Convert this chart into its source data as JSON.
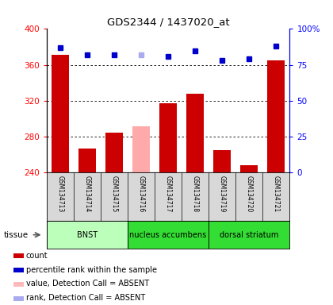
{
  "title": "GDS2344 / 1437020_at",
  "samples": [
    "GSM134713",
    "GSM134714",
    "GSM134715",
    "GSM134716",
    "GSM134717",
    "GSM134718",
    "GSM134719",
    "GSM134720",
    "GSM134721"
  ],
  "bar_values": [
    371,
    267,
    284,
    291,
    317,
    328,
    265,
    248,
    365
  ],
  "bar_colors": [
    "#cc0000",
    "#cc0000",
    "#cc0000",
    "#ffaaaa",
    "#cc0000",
    "#cc0000",
    "#cc0000",
    "#cc0000",
    "#cc0000"
  ],
  "rank_values": [
    87,
    82,
    82,
    82,
    81,
    85,
    78,
    79,
    88
  ],
  "rank_colors": [
    "#0000cc",
    "#0000cc",
    "#0000cc",
    "#aaaaee",
    "#0000cc",
    "#0000cc",
    "#0000cc",
    "#0000cc",
    "#0000cc"
  ],
  "ymin": 240,
  "ymax": 400,
  "yticks": [
    240,
    280,
    320,
    360,
    400
  ],
  "ytick_labels": [
    "240",
    "280",
    "320",
    "360",
    "400"
  ],
  "right_yticks": [
    0,
    25,
    50,
    75,
    100
  ],
  "right_ytick_labels": [
    "0",
    "25",
    "50",
    "75",
    "100%"
  ],
  "tissue_groups": [
    {
      "label": "BNST",
      "start": 0,
      "end": 3,
      "color": "#bbffbb"
    },
    {
      "label": "nucleus accumbens",
      "start": 3,
      "end": 6,
      "color": "#33dd33"
    },
    {
      "label": "dorsal striatum",
      "start": 6,
      "end": 9,
      "color": "#33dd33"
    }
  ],
  "tissue_label": "tissue",
  "legend_items": [
    {
      "color": "#cc0000",
      "label": "count"
    },
    {
      "color": "#0000cc",
      "label": "percentile rank within the sample"
    },
    {
      "color": "#ffbbbb",
      "label": "value, Detection Call = ABSENT"
    },
    {
      "color": "#aaaaee",
      "label": "rank, Detection Call = ABSENT"
    }
  ],
  "bar_width": 0.65
}
